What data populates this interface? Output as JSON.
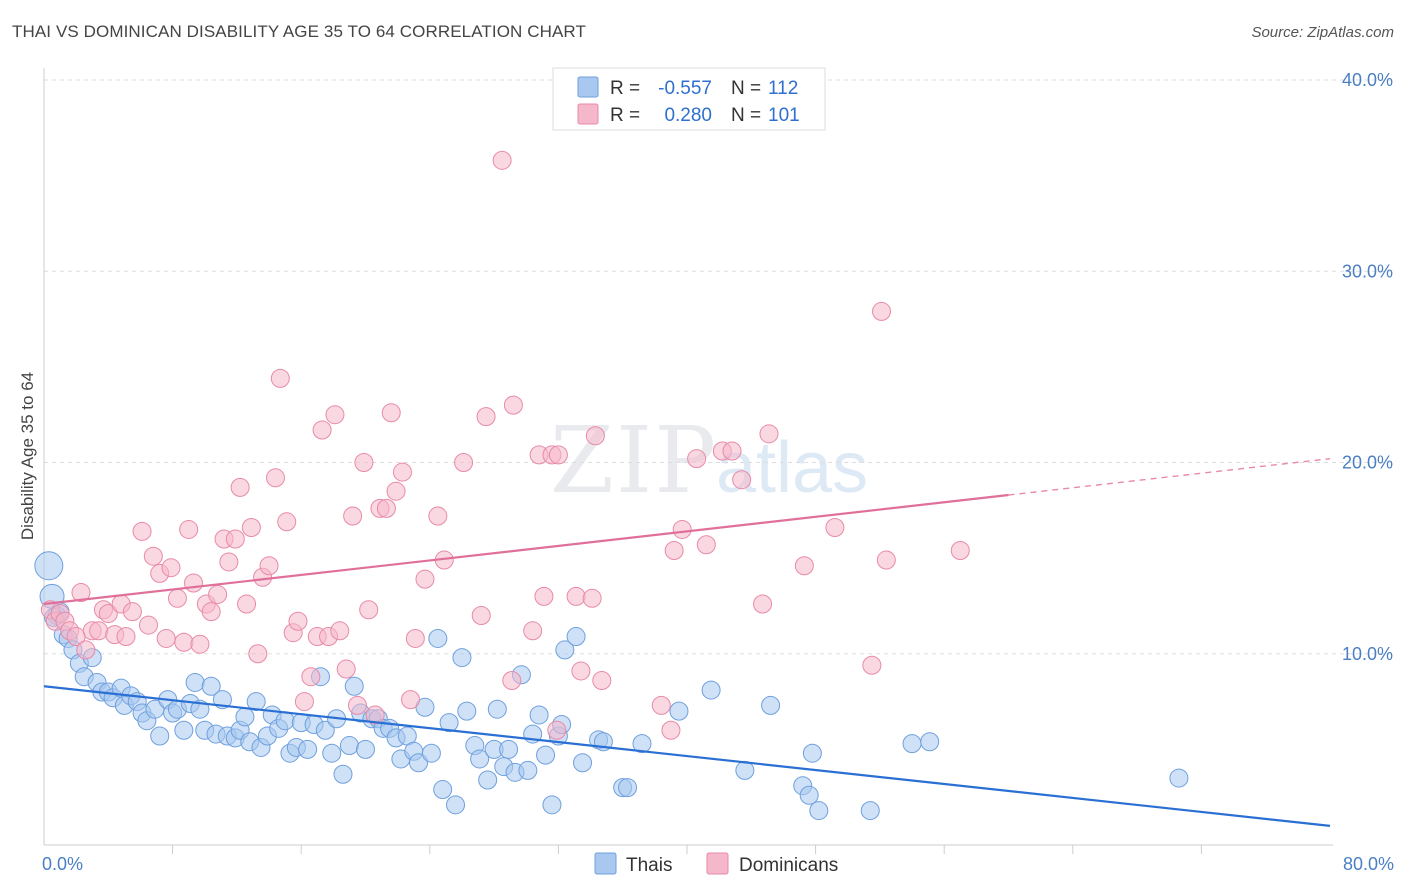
{
  "header": {
    "title": "THAI VS DOMINICAN DISABILITY AGE 35 TO 64 CORRELATION CHART",
    "source": "Source: ZipAtlas.com"
  },
  "watermark": {
    "zip": "ZIP",
    "atlas": "atlas"
  },
  "legend": {
    "rows": [
      {
        "r_label": "R =",
        "r_value": "-0.557",
        "n_label": "N =",
        "n_value": "112",
        "color": "#a8c8f0"
      },
      {
        "r_label": "R =",
        "r_value": "0.280",
        "n_label": "N =",
        "n_value": "101",
        "color": "#f5b8cb"
      }
    ]
  },
  "bottom_legend": [
    {
      "label": "Thais",
      "color": "#a8c8f0"
    },
    {
      "label": "Dominicans",
      "color": "#f5b8cb"
    }
  ],
  "chart_data": {
    "type": "scatter",
    "ylabel": "Disability Age 35 to 64",
    "xlabel": "",
    "xlim": [
      0,
      80
    ],
    "ylim": [
      0,
      40
    ],
    "y_ticks": [
      "10.0%",
      "20.0%",
      "30.0%",
      "40.0%"
    ],
    "x_tick_labels": [
      "0.0%",
      "80.0%"
    ],
    "grid": "horizontal dashed",
    "legend_position": "top-center",
    "series": [
      {
        "name": "Thais",
        "color": "#6fa0dd",
        "fill": "#a8c8f0",
        "trend": {
          "x0": 0,
          "y0": 8.3,
          "x1": 80,
          "y1": 1.0
        },
        "points": [
          [
            0.3,
            14.6
          ],
          [
            0.5,
            13.0
          ],
          [
            0.8,
            12.0
          ],
          [
            1.0,
            12.2
          ],
          [
            1.2,
            11.0
          ],
          [
            1.5,
            10.8
          ],
          [
            1.8,
            10.2
          ],
          [
            2.2,
            9.5
          ],
          [
            2.5,
            8.8
          ],
          [
            3.0,
            9.8
          ],
          [
            3.3,
            8.5
          ],
          [
            3.6,
            8.0
          ],
          [
            4.0,
            8.0
          ],
          [
            4.3,
            7.7
          ],
          [
            4.8,
            8.2
          ],
          [
            5.0,
            7.3
          ],
          [
            5.4,
            7.8
          ],
          [
            5.8,
            7.5
          ],
          [
            6.1,
            6.9
          ],
          [
            6.4,
            6.5
          ],
          [
            6.9,
            7.1
          ],
          [
            7.2,
            5.7
          ],
          [
            7.7,
            7.6
          ],
          [
            8.0,
            6.9
          ],
          [
            8.3,
            7.1
          ],
          [
            8.7,
            6.0
          ],
          [
            9.1,
            7.4
          ],
          [
            9.4,
            8.5
          ],
          [
            9.7,
            7.1
          ],
          [
            10.0,
            6.0
          ],
          [
            10.4,
            8.3
          ],
          [
            10.7,
            5.8
          ],
          [
            11.1,
            7.6
          ],
          [
            11.4,
            5.7
          ],
          [
            11.9,
            5.6
          ],
          [
            12.2,
            6.0
          ],
          [
            12.5,
            6.7
          ],
          [
            12.8,
            5.4
          ],
          [
            13.2,
            7.5
          ],
          [
            13.5,
            5.1
          ],
          [
            13.9,
            5.7
          ],
          [
            14.2,
            6.8
          ],
          [
            14.6,
            6.1
          ],
          [
            15.0,
            6.5
          ],
          [
            15.3,
            4.8
          ],
          [
            15.7,
            5.1
          ],
          [
            16.0,
            6.4
          ],
          [
            16.4,
            5.0
          ],
          [
            16.8,
            6.3
          ],
          [
            17.2,
            8.8
          ],
          [
            17.5,
            6.0
          ],
          [
            17.9,
            4.8
          ],
          [
            18.2,
            6.6
          ],
          [
            18.6,
            3.7
          ],
          [
            19.0,
            5.2
          ],
          [
            19.3,
            8.3
          ],
          [
            19.7,
            6.9
          ],
          [
            20.0,
            5.0
          ],
          [
            20.4,
            6.6
          ],
          [
            20.8,
            6.6
          ],
          [
            21.1,
            6.1
          ],
          [
            21.5,
            6.1
          ],
          [
            21.9,
            5.6
          ],
          [
            22.2,
            4.5
          ],
          [
            22.6,
            5.7
          ],
          [
            23.0,
            4.9
          ],
          [
            23.3,
            4.3
          ],
          [
            23.7,
            7.2
          ],
          [
            24.1,
            4.8
          ],
          [
            24.5,
            10.8
          ],
          [
            24.8,
            2.9
          ],
          [
            25.2,
            6.4
          ],
          [
            25.6,
            2.1
          ],
          [
            26.0,
            9.8
          ],
          [
            26.3,
            7.0
          ],
          [
            26.8,
            5.2
          ],
          [
            27.1,
            4.5
          ],
          [
            27.6,
            3.4
          ],
          [
            28.0,
            5.0
          ],
          [
            28.2,
            7.1
          ],
          [
            28.6,
            4.1
          ],
          [
            28.9,
            5.0
          ],
          [
            29.3,
            3.8
          ],
          [
            29.7,
            8.9
          ],
          [
            30.1,
            3.9
          ],
          [
            30.4,
            5.8
          ],
          [
            30.8,
            6.8
          ],
          [
            31.2,
            4.7
          ],
          [
            31.6,
            2.1
          ],
          [
            32.0,
            5.7
          ],
          [
            32.2,
            6.3
          ],
          [
            32.4,
            10.2
          ],
          [
            33.1,
            10.9
          ],
          [
            33.5,
            4.3
          ],
          [
            34.5,
            5.5
          ],
          [
            34.8,
            5.4
          ],
          [
            36.0,
            3.0
          ],
          [
            36.3,
            3.0
          ],
          [
            37.2,
            5.3
          ],
          [
            39.5,
            7.0
          ],
          [
            41.5,
            8.1
          ],
          [
            43.6,
            3.9
          ],
          [
            45.2,
            7.3
          ],
          [
            47.2,
            3.1
          ],
          [
            47.6,
            2.6
          ],
          [
            47.8,
            4.8
          ],
          [
            48.2,
            1.8
          ],
          [
            51.4,
            1.8
          ],
          [
            54.0,
            5.3
          ],
          [
            55.1,
            5.4
          ],
          [
            70.6,
            3.5
          ],
          [
            0.6,
            11.9
          ]
        ]
      },
      {
        "name": "Dominicans",
        "color": "#e88aa8",
        "fill": "#f5b8cb",
        "trend": {
          "x0": 0,
          "y0": 12.6,
          "x1": 60,
          "y1": 18.3,
          "dash_to": {
            "x": 80,
            "y": 20.2
          }
        },
        "points": [
          [
            0.4,
            12.3
          ],
          [
            0.7,
            11.7
          ],
          [
            1.0,
            12.1
          ],
          [
            1.3,
            11.7
          ],
          [
            1.6,
            11.2
          ],
          [
            2.0,
            10.9
          ],
          [
            2.3,
            13.2
          ],
          [
            2.6,
            10.2
          ],
          [
            3.0,
            11.2
          ],
          [
            3.4,
            11.2
          ],
          [
            3.7,
            12.3
          ],
          [
            4.0,
            12.1
          ],
          [
            4.4,
            11.0
          ],
          [
            4.8,
            12.6
          ],
          [
            5.1,
            10.9
          ],
          [
            5.5,
            12.2
          ],
          [
            6.1,
            16.4
          ],
          [
            6.5,
            11.5
          ],
          [
            6.8,
            15.1
          ],
          [
            7.2,
            14.2
          ],
          [
            7.6,
            10.8
          ],
          [
            7.9,
            14.5
          ],
          [
            8.3,
            12.9
          ],
          [
            8.7,
            10.6
          ],
          [
            9.0,
            16.5
          ],
          [
            9.3,
            13.7
          ],
          [
            9.7,
            10.5
          ],
          [
            10.1,
            12.6
          ],
          [
            10.4,
            12.2
          ],
          [
            10.8,
            13.1
          ],
          [
            11.2,
            16.0
          ],
          [
            11.5,
            14.8
          ],
          [
            11.9,
            16.0
          ],
          [
            12.2,
            18.7
          ],
          [
            12.6,
            12.6
          ],
          [
            12.9,
            16.6
          ],
          [
            13.3,
            10.0
          ],
          [
            13.6,
            14.0
          ],
          [
            14.0,
            14.6
          ],
          [
            14.4,
            19.2
          ],
          [
            14.7,
            24.4
          ],
          [
            15.1,
            16.9
          ],
          [
            15.5,
            11.1
          ],
          [
            15.8,
            11.7
          ],
          [
            16.2,
            7.5
          ],
          [
            16.6,
            8.8
          ],
          [
            17.0,
            10.9
          ],
          [
            17.3,
            21.7
          ],
          [
            17.7,
            10.9
          ],
          [
            18.1,
            22.5
          ],
          [
            18.4,
            11.2
          ],
          [
            18.8,
            9.2
          ],
          [
            19.2,
            17.2
          ],
          [
            19.5,
            7.3
          ],
          [
            19.9,
            20.0
          ],
          [
            20.2,
            12.3
          ],
          [
            20.6,
            6.8
          ],
          [
            20.9,
            17.6
          ],
          [
            21.3,
            17.6
          ],
          [
            21.6,
            22.6
          ],
          [
            21.9,
            18.5
          ],
          [
            22.3,
            19.5
          ],
          [
            22.8,
            7.6
          ],
          [
            23.1,
            10.8
          ],
          [
            23.7,
            13.9
          ],
          [
            24.5,
            17.2
          ],
          [
            24.9,
            14.9
          ],
          [
            26.1,
            20.0
          ],
          [
            27.2,
            12.0
          ],
          [
            27.5,
            22.4
          ],
          [
            28.5,
            35.8
          ],
          [
            29.1,
            8.6
          ],
          [
            29.2,
            23.0
          ],
          [
            30.4,
            11.2
          ],
          [
            30.8,
            20.4
          ],
          [
            31.1,
            13.0
          ],
          [
            31.6,
            20.4
          ],
          [
            31.9,
            6.0
          ],
          [
            32.0,
            20.4
          ],
          [
            33.1,
            13.0
          ],
          [
            33.4,
            9.1
          ],
          [
            34.1,
            12.9
          ],
          [
            34.3,
            21.4
          ],
          [
            34.7,
            8.6
          ],
          [
            38.4,
            7.3
          ],
          [
            39.2,
            15.4
          ],
          [
            39.7,
            16.5
          ],
          [
            40.6,
            20.2
          ],
          [
            41.2,
            15.7
          ],
          [
            42.2,
            20.6
          ],
          [
            42.8,
            20.6
          ],
          [
            43.4,
            19.1
          ],
          [
            44.7,
            12.6
          ],
          [
            45.1,
            21.5
          ],
          [
            47.3,
            14.6
          ],
          [
            49.2,
            16.6
          ],
          [
            51.5,
            9.4
          ],
          [
            52.1,
            27.9
          ],
          [
            52.4,
            14.9
          ],
          [
            57.0,
            15.4
          ],
          [
            39.0,
            6.0
          ]
        ]
      }
    ]
  }
}
